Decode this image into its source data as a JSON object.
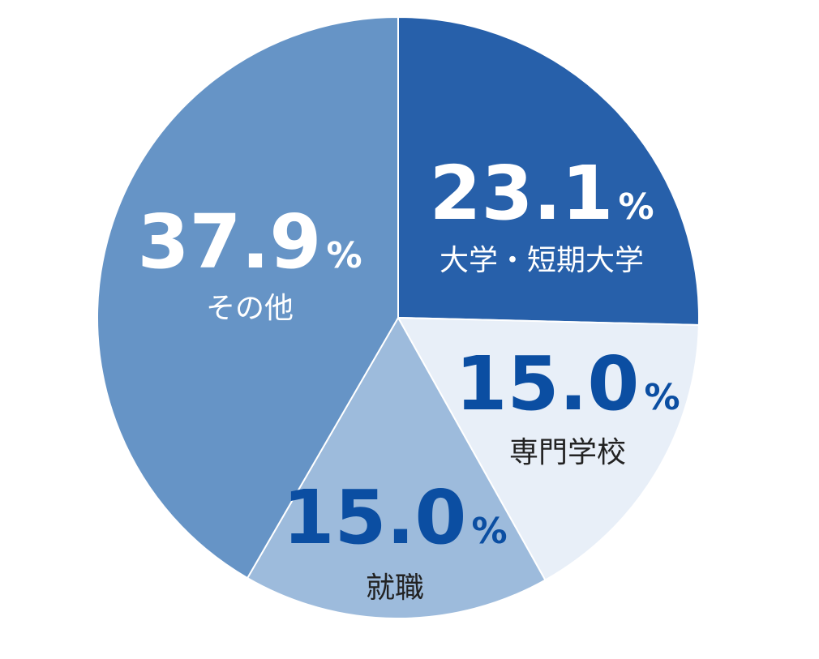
{
  "chart_data": {
    "type": "pie",
    "title": "",
    "slices": [
      {
        "label": "大学・短期大学",
        "value": 23.1,
        "value_text": "23.1",
        "unit": "%",
        "color": "#2760AA",
        "text_color": "#FFFFFF"
      },
      {
        "label": "専門学校",
        "value": 15.0,
        "value_text": "15.0",
        "unit": "%",
        "color": "#E8EFF8",
        "text_color": "#0B4EA2",
        "label_color": "#222222"
      },
      {
        "label": "就職",
        "value": 15.0,
        "value_text": "15.0",
        "unit": "%",
        "color": "#9DBBDC",
        "text_color": "#0B4EA2",
        "label_color": "#222222"
      },
      {
        "label": "その他",
        "value": 37.9,
        "value_text": "37.9",
        "unit": "%",
        "color": "#6694C6",
        "text_color": "#FFFFFF"
      }
    ],
    "start_angle": "12 o'clock",
    "direction": "clockwise",
    "legend": "none"
  }
}
